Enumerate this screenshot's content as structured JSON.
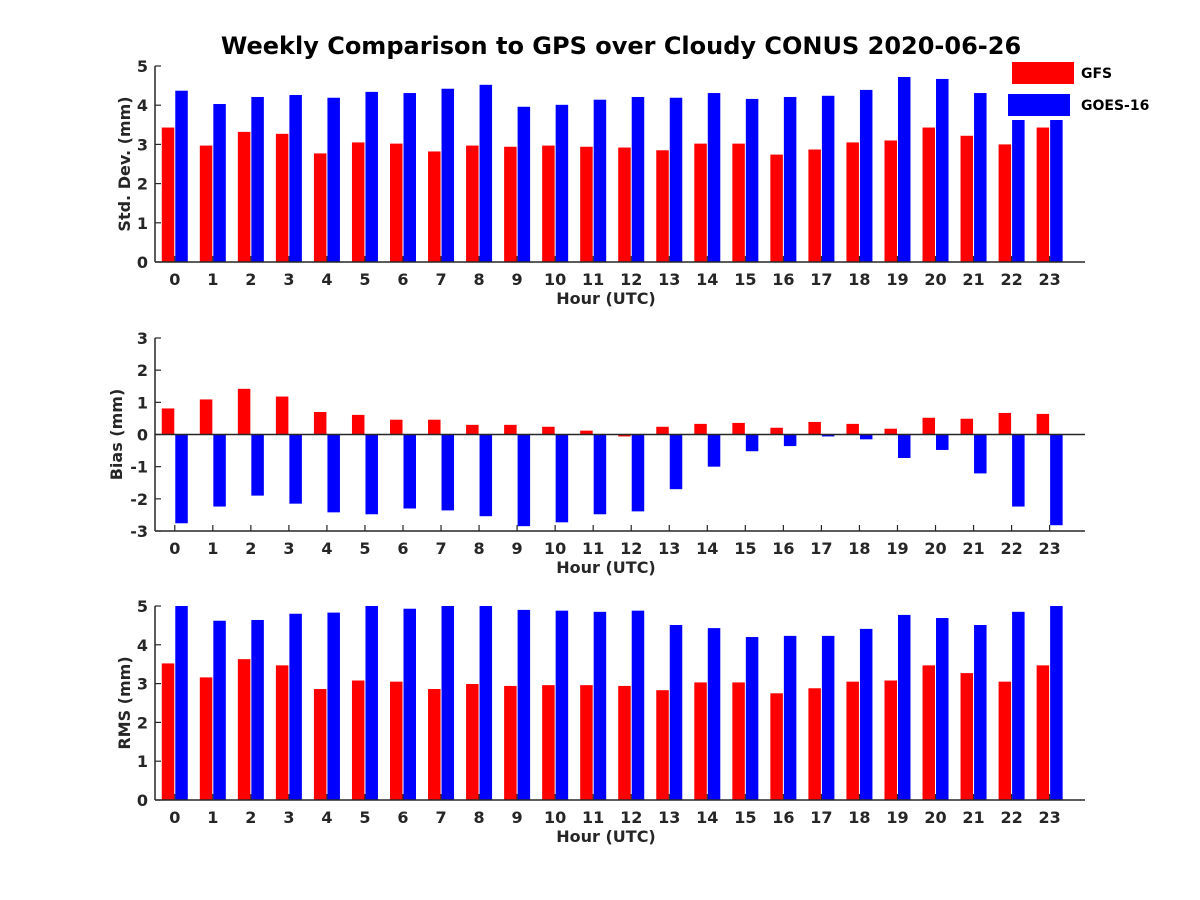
{
  "title": "Weekly Comparison to GPS over Cloudy CONUS 2020-06-26",
  "legend": [
    {
      "name": "GFS",
      "color": "#ff0000"
    },
    {
      "name": "GOES-16",
      "color": "#0000ff"
    }
  ],
  "chart_data": [
    {
      "type": "bar",
      "categories": [
        "0",
        "1",
        "2",
        "3",
        "4",
        "5",
        "6",
        "7",
        "8",
        "9",
        "10",
        "11",
        "12",
        "13",
        "14",
        "15",
        "16",
        "17",
        "18",
        "19",
        "20",
        "21",
        "22",
        "23"
      ],
      "xlabel": "Hour (UTC)",
      "ylabel": "Std. Dev. (mm)",
      "ylim": [
        0,
        5
      ],
      "yticks": [
        "0",
        "1",
        "2",
        "3",
        "4",
        "5"
      ],
      "series": [
        {
          "name": "GFS",
          "values": [
            3.43,
            2.97,
            3.32,
            3.27,
            2.77,
            3.05,
            3.02,
            2.82,
            2.97,
            2.94,
            2.97,
            2.94,
            2.92,
            2.85,
            3.02,
            3.02,
            2.74,
            2.87,
            3.05,
            3.1,
            3.43,
            3.22,
            3.0,
            3.43
          ]
        },
        {
          "name": "GOES-16",
          "values": [
            4.37,
            4.03,
            4.21,
            4.26,
            4.19,
            4.34,
            4.31,
            4.42,
            4.52,
            3.96,
            4.01,
            4.14,
            4.21,
            4.19,
            4.31,
            4.16,
            4.21,
            4.24,
            4.39,
            4.72,
            4.67,
            4.31,
            4.8,
            4.8
          ]
        }
      ]
    },
    {
      "type": "bar",
      "categories": [
        "0",
        "1",
        "2",
        "3",
        "4",
        "5",
        "6",
        "7",
        "8",
        "9",
        "10",
        "11",
        "12",
        "13",
        "14",
        "15",
        "16",
        "17",
        "18",
        "19",
        "20",
        "21",
        "22",
        "23"
      ],
      "xlabel": "Hour (UTC)",
      "ylabel": "Bias (mm)",
      "ylim": [
        -3,
        3
      ],
      "yticks": [
        "-3",
        "-2",
        "-1",
        "0",
        "1",
        "2",
        "3"
      ],
      "series": [
        {
          "name": "GFS",
          "values": [
            0.81,
            1.09,
            1.42,
            1.18,
            0.7,
            0.61,
            0.46,
            0.46,
            0.3,
            0.3,
            0.24,
            0.12,
            -0.06,
            0.24,
            0.33,
            0.36,
            0.21,
            0.39,
            0.33,
            0.18,
            0.52,
            0.49,
            0.67,
            0.64
          ]
        },
        {
          "name": "GOES-16",
          "values": [
            -2.76,
            -2.24,
            -1.9,
            -2.15,
            -2.42,
            -2.48,
            -2.3,
            -2.36,
            -2.54,
            -2.85,
            -2.73,
            -2.48,
            -2.39,
            -1.7,
            -1.0,
            -0.52,
            -0.36,
            -0.06,
            -0.15,
            -0.73,
            -0.48,
            -1.21,
            -2.24,
            -2.82
          ]
        }
      ]
    },
    {
      "type": "bar",
      "categories": [
        "0",
        "1",
        "2",
        "3",
        "4",
        "5",
        "6",
        "7",
        "8",
        "9",
        "10",
        "11",
        "12",
        "13",
        "14",
        "15",
        "16",
        "17",
        "18",
        "19",
        "20",
        "21",
        "22",
        "23"
      ],
      "xlabel": "Hour (UTC)",
      "ylabel": "RMS (mm)",
      "ylim": [
        0,
        5
      ],
      "yticks": [
        "0",
        "1",
        "2",
        "3",
        "4",
        "5"
      ],
      "series": [
        {
          "name": "GFS",
          "values": [
            3.52,
            3.16,
            3.63,
            3.47,
            2.86,
            3.08,
            3.05,
            2.86,
            2.99,
            2.94,
            2.96,
            2.96,
            2.94,
            2.83,
            3.03,
            3.03,
            2.75,
            2.88,
            3.05,
            3.08,
            3.47,
            3.27,
            3.05,
            3.47
          ]
        },
        {
          "name": "GOES-16",
          "values": [
            5.0,
            4.62,
            4.64,
            4.8,
            4.83,
            5.0,
            4.93,
            5.0,
            5.0,
            4.9,
            4.88,
            4.85,
            4.88,
            4.51,
            4.43,
            4.2,
            4.23,
            4.23,
            4.41,
            4.77,
            4.69,
            4.51,
            4.85,
            5.0
          ]
        }
      ]
    }
  ]
}
